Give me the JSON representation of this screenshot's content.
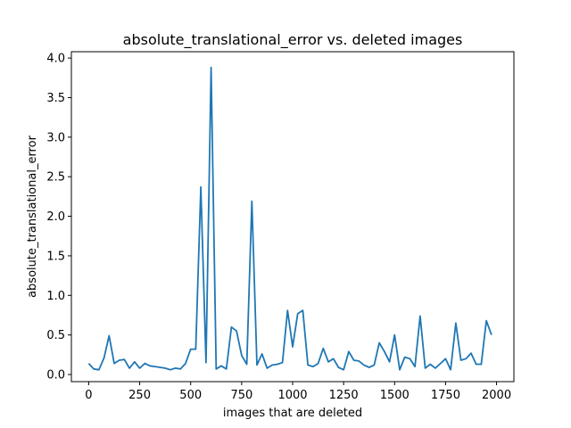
{
  "chart_data": {
    "type": "line",
    "title": "absolute_translational_error vs. deleted images",
    "xlabel": "images that are deleted",
    "ylabel": "absolute_translational_error",
    "xlim": [
      -85,
      2085
    ],
    "ylim": [
      -0.09,
      4.08
    ],
    "xticks": [
      0,
      250,
      500,
      750,
      1000,
      1250,
      1500,
      1750,
      2000
    ],
    "yticks": [
      0.0,
      0.5,
      1.0,
      1.5,
      2.0,
      2.5,
      3.0,
      3.5,
      4.0
    ],
    "xtick_labels": [
      "0",
      "250",
      "500",
      "750",
      "1000",
      "1250",
      "1500",
      "1750",
      "2000"
    ],
    "ytick_labels": [
      "0.0",
      "0.5",
      "1.0",
      "1.5",
      "2.0",
      "2.5",
      "3.0",
      "3.5",
      "4.0"
    ],
    "grid": false,
    "legend": "none",
    "series": [
      {
        "color": "#1f77b4",
        "x": [
          0,
          25,
          50,
          75,
          100,
          125,
          150,
          175,
          200,
          225,
          250,
          275,
          300,
          325,
          350,
          375,
          400,
          425,
          450,
          475,
          500,
          525,
          550,
          575,
          600,
          625,
          650,
          675,
          700,
          725,
          750,
          775,
          800,
          825,
          850,
          875,
          900,
          925,
          950,
          975,
          1000,
          1025,
          1050,
          1075,
          1100,
          1125,
          1150,
          1175,
          1200,
          1225,
          1250,
          1275,
          1300,
          1325,
          1350,
          1375,
          1400,
          1425,
          1450,
          1475,
          1500,
          1525,
          1550,
          1575,
          1600,
          1625,
          1650,
          1675,
          1700,
          1725,
          1750,
          1775,
          1800,
          1825,
          1850,
          1875,
          1900,
          1925,
          1950,
          1975
        ],
        "y": [
          0.14,
          0.07,
          0.06,
          0.21,
          0.49,
          0.14,
          0.18,
          0.19,
          0.08,
          0.16,
          0.08,
          0.14,
          0.11,
          0.1,
          0.09,
          0.08,
          0.06,
          0.08,
          0.07,
          0.14,
          0.32,
          0.32,
          2.37,
          0.15,
          3.88,
          0.07,
          0.11,
          0.07,
          0.6,
          0.55,
          0.24,
          0.13,
          2.19,
          0.12,
          0.26,
          0.08,
          0.12,
          0.13,
          0.15,
          0.81,
          0.35,
          0.77,
          0.81,
          0.12,
          0.1,
          0.14,
          0.33,
          0.16,
          0.2,
          0.09,
          0.06,
          0.29,
          0.18,
          0.17,
          0.12,
          0.09,
          0.12,
          0.4,
          0.29,
          0.16,
          0.5,
          0.06,
          0.22,
          0.2,
          0.1,
          0.74,
          0.08,
          0.13,
          0.08,
          0.14,
          0.2,
          0.06,
          0.65,
          0.18,
          0.2,
          0.27,
          0.13,
          0.13,
          0.68,
          0.5
        ]
      }
    ]
  }
}
